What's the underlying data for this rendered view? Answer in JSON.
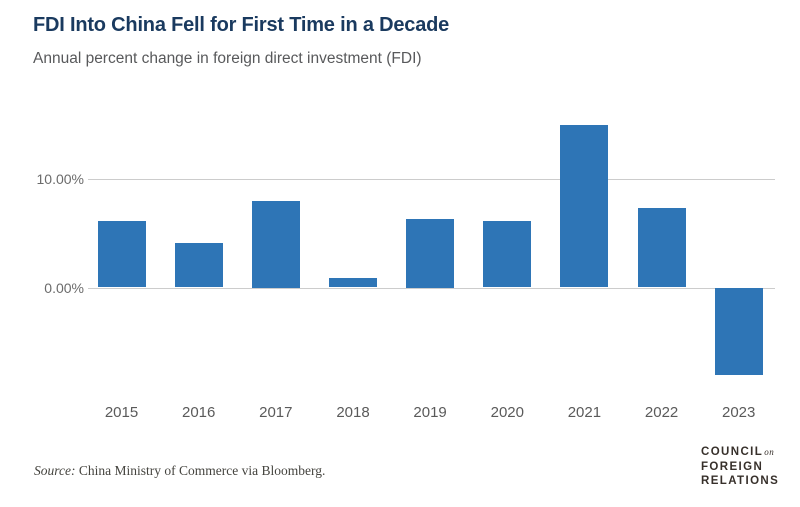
{
  "header": {
    "title": "FDI Into China Fell for First Time in a Decade",
    "subtitle": "Annual percent change in foreign direct investment (FDI)"
  },
  "chart_data": {
    "type": "bar",
    "categories": [
      "2015",
      "2016",
      "2017",
      "2018",
      "2019",
      "2020",
      "2021",
      "2022",
      "2023"
    ],
    "values": [
      6.1,
      4.1,
      8.0,
      0.9,
      6.3,
      6.1,
      14.9,
      7.3,
      -8.0
    ],
    "title": "FDI Into China Fell for First Time in a Decade",
    "subtitle": "Annual percent change in foreign direct investment (FDI)",
    "xlabel": "",
    "ylabel": "",
    "unit": "percent",
    "y_ticks": [
      {
        "value": 10,
        "label": "10.00%"
      },
      {
        "value": 0,
        "label": "0.00%"
      }
    ],
    "ylim": [
      -10,
      16.5
    ],
    "grid": "horizontal",
    "legend": "none",
    "bar_color": "#2e75b6",
    "gridline_color": "#cccccc"
  },
  "footer": {
    "source_prefix": "Source:",
    "source_text": "China Ministry of Commerce via Bloomberg."
  },
  "logo": {
    "line1": "COUNCIL",
    "line1_suffix": "on",
    "line2": "FOREIGN",
    "line3": "RELATIONS"
  },
  "colors": {
    "title": "#1a3a5f",
    "subtitle": "#58595b",
    "axis_label": "#6b6b6b",
    "gridline": "#cccccc",
    "bar": "#2e75b6",
    "source": "#45443f",
    "logo": "#37302b"
  }
}
